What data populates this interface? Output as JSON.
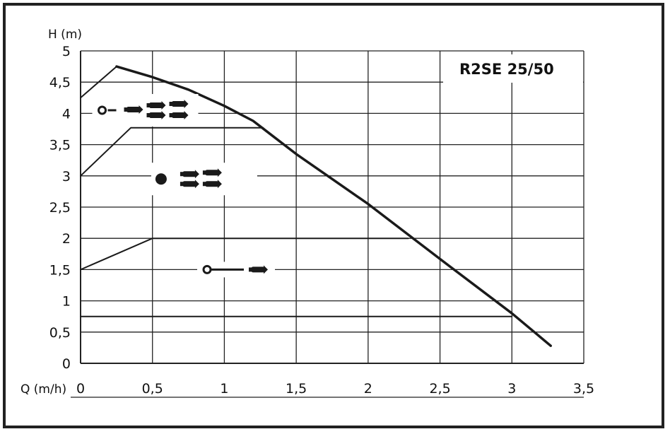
{
  "chart_data": {
    "type": "line",
    "title": "R2SE 25/50",
    "xlabel": "Q (m/h)",
    "ylabel": "H (m)",
    "xlim": [
      0,
      3.5
    ],
    "ylim": [
      0,
      5
    ],
    "grid": true,
    "x_ticks": [
      0,
      0.5,
      1,
      1.5,
      2,
      2.5,
      3,
      3.5
    ],
    "y_ticks": [
      0,
      0.5,
      1,
      1.5,
      2,
      2.5,
      3,
      3.5,
      4,
      4.5,
      5
    ],
    "x_tick_labels": [
      "0",
      "0,5",
      "1",
      "1,5",
      "2",
      "2,5",
      "3",
      "3,5"
    ],
    "y_tick_labels": [
      "0",
      "0,5",
      "1",
      "1,5",
      "2",
      "2,5",
      "3",
      "3,5",
      "4",
      "4,5",
      "5"
    ],
    "series": [
      {
        "id": "max-curve",
        "x": [
          0.25,
          0.5,
          0.75,
          1.0,
          1.2,
          1.5,
          2.0,
          2.5,
          3.0,
          3.27
        ],
        "y": [
          4.75,
          4.58,
          4.38,
          4.12,
          3.88,
          3.35,
          2.55,
          1.67,
          0.8,
          0.28
        ],
        "stroke_width": 3.5
      },
      {
        "id": "mode-high",
        "x": [
          0,
          0.25,
          0.5,
          0.75,
          1.0,
          1.2
        ],
        "y": [
          4.25,
          4.75,
          4.58,
          4.38,
          4.12,
          3.88
        ],
        "stroke_width": 2
      },
      {
        "id": "mode-mid",
        "x": [
          0,
          0.35,
          1.27
        ],
        "y": [
          3.0,
          3.77,
          3.77
        ],
        "stroke_width": 2
      },
      {
        "id": "mode-low",
        "x": [
          0,
          0.5,
          2.28
        ],
        "y": [
          1.5,
          2.0,
          2.0
        ],
        "stroke_width": 2
      },
      {
        "id": "minimum",
        "x": [
          0,
          3.0
        ],
        "y": [
          0.75,
          0.75
        ],
        "stroke_width": 2
      }
    ],
    "mode_symbols": [
      {
        "id": "symbol-mode-high",
        "ring": "open",
        "arrows": 4,
        "x": 0.15,
        "y": 4.05
      },
      {
        "id": "symbol-mode-mid",
        "ring": "filled",
        "arrows": 4,
        "x": 0.56,
        "y": 2.95
      },
      {
        "id": "symbol-mode-low",
        "ring": "open",
        "arrows": 1,
        "x": 0.88,
        "y": 1.5
      }
    ],
    "colors": {
      "line": "#1a1a1a",
      "grid": "#222222",
      "background": "#ffffff"
    }
  }
}
